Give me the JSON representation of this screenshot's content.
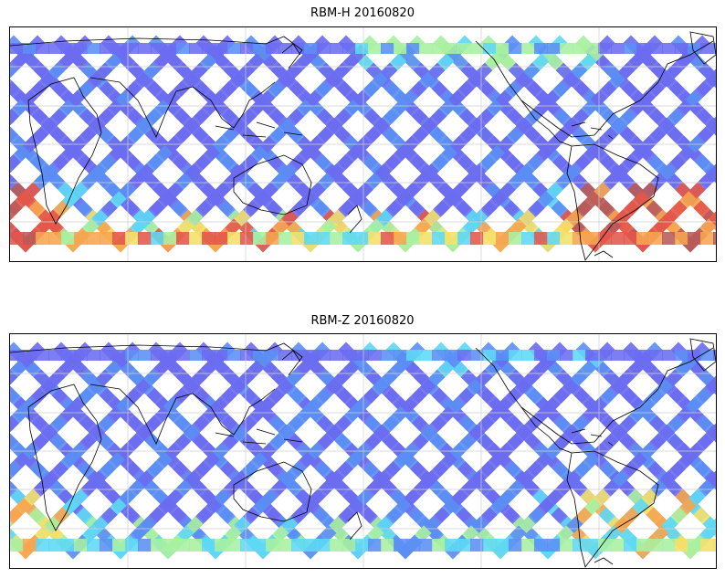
{
  "panels": [
    {
      "title": "RBM-H 20160820",
      "intensity": {
        "southern_band": "high",
        "south_atlantic": "very-high",
        "north_pacific": "moderate",
        "elsewhere": "low"
      }
    },
    {
      "title": "RBM-Z 20160820",
      "intensity": {
        "southern_band": "moderate",
        "south_atlantic": "moderate-high",
        "north_pacific": "low-moderate",
        "elsewhere": "low"
      }
    }
  ],
  "colors": {
    "low": "#6b6cf0",
    "low_mid": "#5b8ff5",
    "cyan": "#5fd8f5",
    "green": "#a8f0a0",
    "yellow": "#f4e06a",
    "orange": "#f6a550",
    "red": "#e4574a",
    "dark_red": "#b85a5a",
    "coast": "#000000",
    "grid": "#cfcfcf"
  },
  "projection": "equirectangular",
  "grid": true
}
